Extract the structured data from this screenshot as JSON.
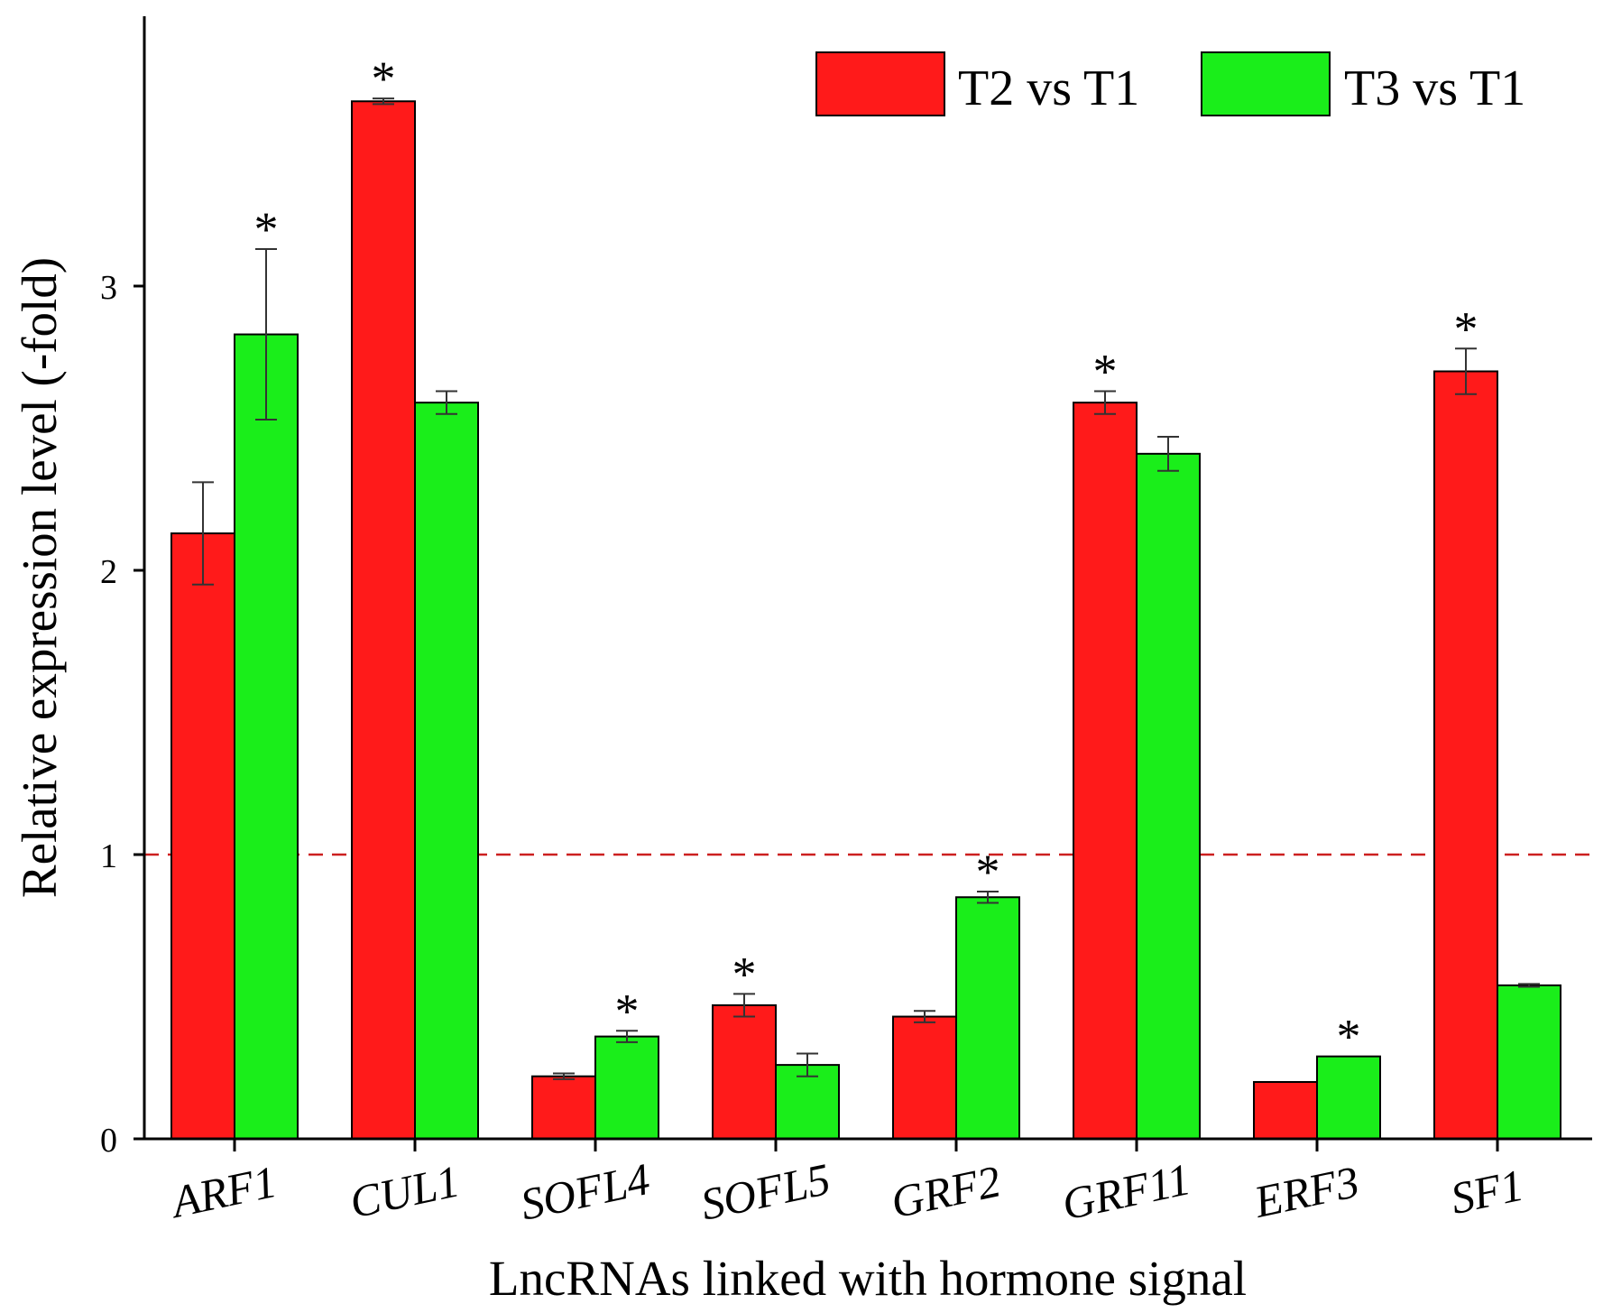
{
  "chart_data": {
    "type": "bar",
    "title": "",
    "xlabel": "LncRNAs linked with hormone signal",
    "ylabel": "Relative expression level (-fold)",
    "ylim": [
      0,
      3.8
    ],
    "yticks": [
      0,
      1,
      2,
      3
    ],
    "reference_line": 1,
    "categories": [
      "ARF1",
      "CUL1",
      "SOFL4",
      "SOFL5",
      "GRF2",
      "GRF11",
      "ERF3",
      "SF1"
    ],
    "significance_marker": "*",
    "series": [
      {
        "name": "T2 vs T1",
        "color": "#ff1a1a",
        "values": [
          2.13,
          3.65,
          0.22,
          0.47,
          0.43,
          2.59,
          0.2,
          2.7
        ],
        "errors": [
          0.18,
          0.01,
          0.01,
          0.04,
          0.02,
          0.04,
          0.0,
          0.08
        ],
        "significant": [
          false,
          true,
          false,
          true,
          false,
          true,
          false,
          true
        ]
      },
      {
        "name": "T3 vs T1",
        "color": "#1aee1a",
        "values": [
          2.83,
          2.59,
          0.36,
          0.26,
          0.85,
          2.41,
          0.29,
          0.54
        ],
        "errors": [
          0.3,
          0.04,
          0.02,
          0.04,
          0.02,
          0.06,
          0.0,
          0.005
        ],
        "significant": [
          true,
          false,
          true,
          false,
          true,
          false,
          true,
          false
        ]
      }
    ]
  }
}
